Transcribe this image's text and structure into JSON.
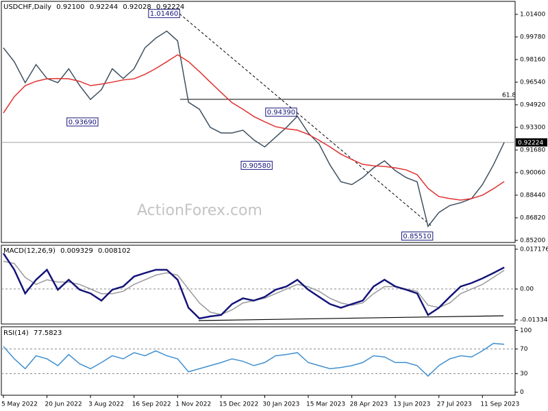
{
  "chart_data": [
    {
      "type": "line",
      "title": "USDCHF,Daily",
      "ohlc_labels": [
        "0.92100",
        "0.92244",
        "0.92028",
        "0.92224"
      ],
      "x": [
        0,
        8,
        16,
        24,
        32,
        40,
        48,
        56,
        64,
        72,
        80,
        88,
        96,
        104,
        112,
        120,
        128,
        136,
        144,
        152,
        160,
        168,
        176,
        184,
        192,
        200,
        208,
        216,
        224,
        232,
        240,
        248,
        256,
        264,
        272,
        280,
        288,
        296,
        304,
        312,
        320,
        328,
        336,
        344,
        352,
        360,
        368
      ],
      "xlim": [
        -1.5,
        376
      ],
      "series": [
        {
          "color": "#3d4f5f",
          "values": [
            0.99,
            0.98,
            0.965,
            0.978,
            0.968,
            0.965,
            0.975,
            0.963,
            0.953,
            0.96,
            0.975,
            0.968,
            0.975,
            0.99,
            0.997,
            1.002,
            0.995,
            0.951,
            0.946,
            0.933,
            0.929,
            0.929,
            0.931,
            0.924,
            0.919,
            0.926,
            0.933,
            0.941,
            0.929,
            0.921,
            0.906,
            0.894,
            0.892,
            0.897,
            0.904,
            0.909,
            0.902,
            0.897,
            0.894,
            0.862,
            0.872,
            0.877,
            0.879,
            0.882,
            0.892,
            0.906,
            0.92224
          ]
        },
        {
          "color": "#e03030",
          "values": [
            0.9433,
            0.955,
            0.9629,
            0.966,
            0.9678,
            0.968,
            0.9678,
            0.966,
            0.9629,
            0.964,
            0.9654,
            0.967,
            0.9678,
            0.971,
            0.9752,
            0.98,
            0.985,
            0.9801,
            0.973,
            0.9654,
            0.958,
            0.9507,
            0.946,
            0.9408,
            0.937,
            0.9335,
            0.932,
            0.931,
            0.928,
            0.9237,
            0.919,
            0.9138,
            0.91,
            0.9065,
            0.9055,
            0.905,
            0.904,
            0.9025,
            0.8991,
            0.8893,
            0.8834,
            0.882,
            0.8809,
            0.882,
            0.8844,
            0.889,
            0.8942
          ]
        }
      ],
      "ylim": [
        0.8505,
        1.0233
      ],
      "yticks": [
        {
          "value": 1.014,
          "label": "1.01400"
        },
        {
          "value": 0.9978,
          "label": "0.99780"
        },
        {
          "value": 0.9816,
          "label": "0.98160"
        },
        {
          "value": 0.9654,
          "label": "0.96540"
        },
        {
          "value": 0.9492,
          "label": "0.94920"
        },
        {
          "value": 0.933,
          "label": "0.93300"
        },
        {
          "value": 0.9168,
          "label": "0.91680"
        },
        {
          "value": 0.9006,
          "label": "0.90060"
        },
        {
          "value": 0.8844,
          "label": "0.88440"
        },
        {
          "value": 0.8682,
          "label": "0.86820"
        },
        {
          "value": 0.852,
          "label": "0.85200"
        }
      ],
      "annotations": [
        {
          "label": "1.01460",
          "x": 130,
          "value": 1.0146
        },
        {
          "label": "0.93690",
          "x": 70,
          "value": 0.9369
        },
        {
          "label": "0.90580",
          "x": 198,
          "value": 0.9058
        },
        {
          "label": "0.94390",
          "x": 216,
          "value": 0.9439
        },
        {
          "label": "0.85510",
          "x": 316,
          "value": 0.8551
        }
      ],
      "last_price": {
        "value": 0.92224,
        "label": "0.92224"
      },
      "fib_label": "61.8",
      "watermark": "ActionForex.com"
    },
    {
      "type": "line",
      "title": "MACD(12,26,9)",
      "value_labels": [
        "0.009329",
        "0.008102"
      ],
      "x": [
        0,
        8,
        16,
        24,
        32,
        40,
        48,
        56,
        64,
        72,
        80,
        88,
        96,
        104,
        112,
        120,
        128,
        136,
        144,
        152,
        160,
        168,
        176,
        184,
        192,
        200,
        208,
        216,
        224,
        232,
        240,
        248,
        256,
        264,
        272,
        280,
        288,
        296,
        304,
        312,
        320,
        328,
        336,
        344,
        352,
        360,
        368
      ],
      "xlim": [
        -1.5,
        376
      ],
      "series": [
        {
          "color": "#9a9a9a",
          "values": [
            0.012,
            0.011,
            0.005,
            0.002,
            0.004,
            0.003,
            0.003,
            0.002,
            0.0,
            -0.002,
            -0.002,
            -0.001,
            0.002,
            0.004,
            0.006,
            0.007,
            0.006,
            0.0,
            -0.006,
            -0.01,
            -0.011,
            -0.009,
            -0.006,
            -0.005,
            -0.004,
            -0.002,
            0.0,
            0.002,
            0.001,
            -0.001,
            -0.004,
            -0.006,
            -0.007,
            -0.006,
            -0.002,
            0.001,
            0.001,
            0.0,
            -0.001,
            -0.007,
            -0.008,
            -0.006,
            -0.002,
            0.0,
            0.002,
            0.005,
            0.008102
          ]
        },
        {
          "color": "#14147a",
          "values": [
            0.0154,
            0.0083,
            -0.0019,
            0.004,
            0.0083,
            -0.0003,
            0.004,
            -0.0003,
            -0.0019,
            -0.005,
            -0.0003,
            0.0011,
            0.0054,
            0.0069,
            0.0083,
            0.0083,
            0.004,
            -0.0081,
            -0.0127,
            -0.0118,
            -0.0112,
            -0.0065,
            -0.004,
            -0.005,
            -0.0034,
            -0.0003,
            0.0011,
            0.004,
            -0.0003,
            -0.0034,
            -0.0065,
            -0.0081,
            -0.0065,
            -0.005,
            0.0011,
            0.004,
            0.0011,
            -0.0003,
            -0.0019,
            -0.0112,
            -0.0081,
            -0.0034,
            0.0011,
            0.0026,
            0.0046,
            0.0069,
            0.009329
          ]
        }
      ],
      "ylim": [
        -0.0151,
        0.0189
      ],
      "yticks": [
        0.017176,
        {
          "value": 0,
          "label": "0.00"
        },
        -0.01334
      ],
      "reference_lines": [
        0
      ]
    },
    {
      "type": "line",
      "title": "RSI(14)",
      "value_labels": [
        "77.5823"
      ],
      "x": [
        0,
        8,
        16,
        24,
        32,
        40,
        48,
        56,
        64,
        72,
        80,
        88,
        96,
        104,
        112,
        120,
        128,
        136,
        144,
        152,
        160,
        168,
        176,
        184,
        192,
        200,
        208,
        216,
        224,
        232,
        240,
        248,
        256,
        264,
        272,
        280,
        288,
        296,
        304,
        312,
        320,
        328,
        336,
        344,
        352,
        360,
        368
      ],
      "xlim": [
        -1.5,
        376
      ],
      "series": [
        {
          "color": "#3f8fd0",
          "values": [
            74,
            54,
            38,
            59,
            54,
            43,
            61,
            46,
            38,
            48,
            59,
            54,
            64,
            59,
            67,
            59,
            54,
            33,
            38,
            43,
            48,
            54,
            50,
            43,
            48,
            59,
            61,
            64,
            48,
            43,
            38,
            40,
            43,
            48,
            59,
            57,
            48,
            48,
            43,
            26,
            43,
            54,
            59,
            57,
            67,
            79,
            77.5823
          ]
        }
      ],
      "ylim": [
        -5,
        106
      ],
      "yticks": [
        100,
        70,
        30,
        0
      ],
      "reference_lines": [
        70,
        30
      ],
      "xticks": [
        {
          "value": 0,
          "label": "5 May 2022"
        },
        {
          "value": 32,
          "label": "20 Jun 2022"
        },
        {
          "value": 64,
          "label": "3 Aug 2022"
        },
        {
          "value": 96,
          "label": "16 Sep 2022"
        },
        {
          "value": 128,
          "label": "1 Nov 2022"
        },
        {
          "value": 160,
          "label": "15 Dec 2022"
        },
        {
          "value": 192,
          "label": "30 Jan 2023"
        },
        {
          "value": 224,
          "label": "15 Mar 2023"
        },
        {
          "value": 256,
          "label": "28 Apr 2023"
        },
        {
          "value": 288,
          "label": "13 Jun 2023"
        },
        {
          "value": 320,
          "label": "27 Jul 2023"
        },
        {
          "value": 352,
          "label": "11 Sep 2023"
        }
      ]
    }
  ]
}
